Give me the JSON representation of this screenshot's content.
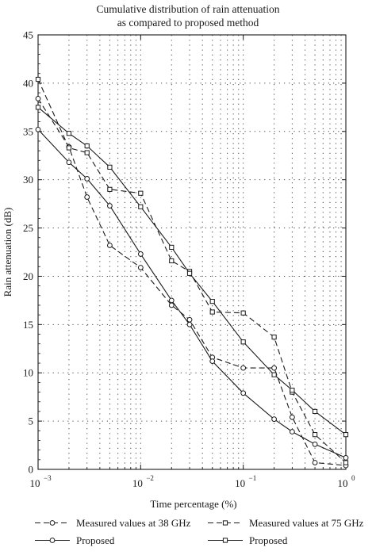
{
  "chart_data": {
    "type": "line",
    "title": [
      "Cumulative distribution of rain attenuation",
      "as compared to proposed method"
    ],
    "xlabel": "Time percentage (%)",
    "ylabel": "Rain attenuation (dB)",
    "x_scale": "log",
    "xlim": [
      0.001,
      1
    ],
    "ylim": [
      0,
      45
    ],
    "grid": true,
    "legend_position": "bottom",
    "x_ticks": [
      {
        "base": "10",
        "exp": "−3"
      },
      {
        "base": "10",
        "exp": "−2"
      },
      {
        "base": "10",
        "exp": "−1"
      },
      {
        "base": "10",
        "exp": "0"
      }
    ],
    "y_ticks": [
      "0",
      "5",
      "10",
      "15",
      "20",
      "25",
      "30",
      "35",
      "40",
      "45"
    ],
    "series": [
      {
        "name": "Measured values at 38 GHz",
        "marker": "circle",
        "dash": true,
        "x": [
          0.001,
          0.002,
          0.003,
          0.005,
          0.01,
          0.02,
          0.03,
          0.05,
          0.1,
          0.2,
          0.3,
          0.5,
          1
        ],
        "y": [
          38.4,
          33.4,
          28.2,
          23.2,
          20.9,
          17.0,
          15.5,
          11.6,
          10.5,
          10.5,
          5.4,
          0.7,
          0.4
        ]
      },
      {
        "name": "Measured values at 75 GHz",
        "marker": "square",
        "dash": true,
        "x": [
          0.001,
          0.002,
          0.003,
          0.005,
          0.01,
          0.02,
          0.03,
          0.05,
          0.1,
          0.2,
          0.3,
          0.5,
          1
        ],
        "y": [
          40.4,
          33.3,
          32.8,
          29.0,
          28.6,
          21.6,
          20.5,
          16.3,
          16.2,
          13.7,
          8.0,
          3.6,
          0.7
        ]
      },
      {
        "name": "Proposed",
        "marker": "circle",
        "dash": false,
        "x": [
          0.001,
          0.002,
          0.003,
          0.005,
          0.01,
          0.02,
          0.03,
          0.05,
          0.1,
          0.2,
          0.3,
          0.5,
          1
        ],
        "y": [
          35.2,
          31.8,
          30.1,
          27.3,
          22.3,
          17.5,
          15.0,
          11.2,
          7.9,
          5.2,
          3.9,
          2.6,
          1.2
        ]
      },
      {
        "name": "Proposed",
        "marker": "square",
        "dash": false,
        "x": [
          0.001,
          0.002,
          0.003,
          0.005,
          0.01,
          0.02,
          0.03,
          0.05,
          0.1,
          0.2,
          0.3,
          0.5,
          1
        ],
        "y": [
          37.5,
          34.8,
          33.5,
          31.3,
          27.2,
          23.0,
          20.3,
          17.4,
          13.2,
          9.8,
          8.2,
          6.0,
          3.6
        ]
      }
    ]
  }
}
